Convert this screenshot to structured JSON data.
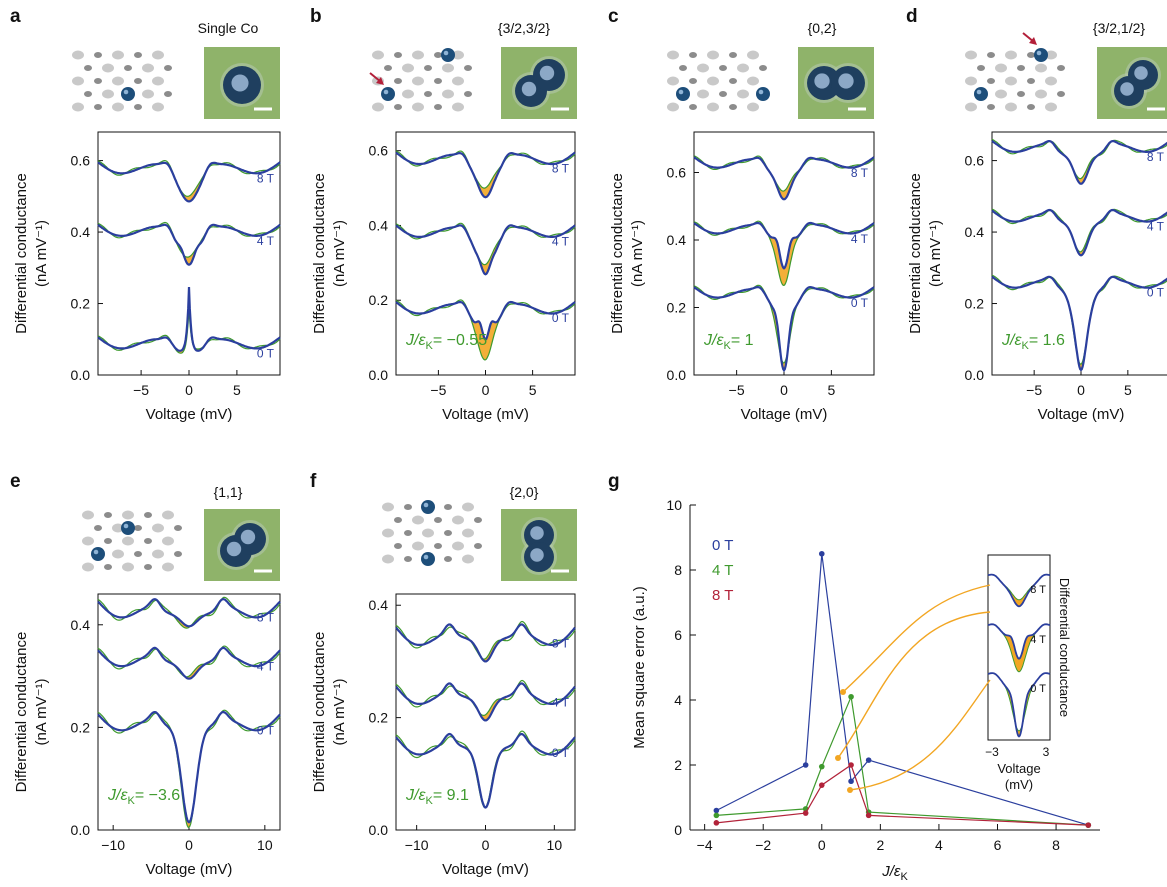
{
  "colors": {
    "data": "#2b3f9e",
    "fit": "#3f9a2e",
    "fill": "#f2a623",
    "red": "#b2233a",
    "bg_afm": "#8fb36a",
    "atom": "#1d4e7a",
    "arrow": "#b3203a"
  },
  "common": {
    "ylabel_line1": "Differential conductance",
    "ylabel_line2": "(nA mV⁻¹)",
    "xlabel": "Voltage (mV)"
  },
  "panels": [
    {
      "letter": "a",
      "title": "Single Co",
      "ratio": "",
      "fields": [
        "8 T",
        "4 T",
        "0 T"
      ],
      "xticks": [
        "−5",
        "0",
        "5"
      ],
      "yticks": [
        "0.0",
        "0.2",
        "0.4",
        "0.6"
      ]
    },
    {
      "letter": "b",
      "title": "{3/2,3/2}",
      "ratio": "= −0.55",
      "fields": [
        "8 T",
        "4 T",
        "0 T"
      ],
      "xticks": [
        "−5",
        "0",
        "5"
      ],
      "yticks": [
        "0.0",
        "0.2",
        "0.4",
        "0.6"
      ]
    },
    {
      "letter": "c",
      "title": "{0,2}",
      "ratio": "= 1",
      "fields": [
        "8 T",
        "4 T",
        "0 T"
      ],
      "xticks": [
        "−5",
        "0",
        "5"
      ],
      "yticks": [
        "0.0",
        "0.2",
        "0.4",
        "0.6"
      ]
    },
    {
      "letter": "d",
      "title": "{3/2,1/2}",
      "ratio": "= 1.6",
      "fields": [
        "8 T",
        "4 T",
        "0 T"
      ],
      "xticks": [
        "−5",
        "0",
        "5"
      ],
      "yticks": [
        "0.0",
        "0.2",
        "0.4",
        "0.6"
      ]
    },
    {
      "letter": "e",
      "title": "{1,1}",
      "ratio": "= −3.6",
      "fields": [
        "8 T",
        "4 T",
        "0 T"
      ],
      "xticks": [
        "−10",
        "0",
        "10"
      ],
      "yticks": [
        "0.0",
        "0.2",
        "0.4"
      ]
    },
    {
      "letter": "f",
      "title": "{2,0}",
      "ratio": "= 9.1",
      "fields": [
        "8 T",
        "4 T",
        "0 T"
      ],
      "xticks": [
        "−10",
        "0",
        "10"
      ],
      "yticks": [
        "0.0",
        "0.2",
        "0.4"
      ]
    }
  ],
  "ratio_symbol": "J/ε",
  "ratio_sub": "K",
  "chart_data": [
    {
      "type": "line",
      "panel": "a",
      "xlabel": "Voltage (mV)",
      "ylabel": "Differential conductance (nA mV⁻¹)",
      "xlim": [
        -9.5,
        9.5
      ],
      "ylim": [
        0,
        0.68
      ],
      "series": [
        {
          "name": "0 T",
          "baseline": 0.095,
          "peak": 0.27
        },
        {
          "name": "4 T",
          "baseline": 0.405
        },
        {
          "name": "8 T",
          "baseline": 0.58
        }
      ]
    },
    {
      "type": "line",
      "panel": "b",
      "xlabel": "Voltage (mV)",
      "ylabel": "Differential conductance (nA mV⁻¹)",
      "xlim": [
        -9.5,
        9.5
      ],
      "ylim": [
        0,
        0.65
      ],
      "series": [
        {
          "name": "0 T",
          "baseline": 0.18
        },
        {
          "name": "4 T",
          "baseline": 0.38
        },
        {
          "name": "8 T",
          "baseline": 0.58
        }
      ]
    },
    {
      "type": "line",
      "panel": "c",
      "xlabel": "Voltage (mV)",
      "ylabel": "Differential conductance (nA mV⁻¹)",
      "xlim": [
        -9.5,
        9.5
      ],
      "ylim": [
        0,
        0.72
      ],
      "series": [
        {
          "name": "0 T",
          "baseline": 0.24
        },
        {
          "name": "4 T",
          "baseline": 0.43
        },
        {
          "name": "8 T",
          "baseline": 0.63
        }
      ]
    },
    {
      "type": "line",
      "panel": "d",
      "xlabel": "Voltage (mV)",
      "ylabel": "Differential conductance (nA mV⁻¹)",
      "xlim": [
        -9.5,
        9.5
      ],
      "ylim": [
        0,
        0.68
      ],
      "series": [
        {
          "name": "0 T",
          "baseline": 0.26
        },
        {
          "name": "4 T",
          "baseline": 0.44
        },
        {
          "name": "8 T",
          "baseline": 0.63
        }
      ]
    },
    {
      "type": "line",
      "panel": "e",
      "xlabel": "Voltage (mV)",
      "ylabel": "Differential conductance (nA mV⁻¹)",
      "xlim": [
        -12,
        12
      ],
      "ylim": [
        0,
        0.46
      ],
      "series": [
        {
          "name": "0 T",
          "baseline": 0.21
        },
        {
          "name": "4 T",
          "baseline": 0.335
        },
        {
          "name": "8 T",
          "baseline": 0.43
        }
      ]
    },
    {
      "type": "line",
      "panel": "f",
      "xlabel": "Voltage (mV)",
      "ylabel": "Differential conductance (nA mV⁻¹)",
      "xlim": [
        -13,
        13
      ],
      "ylim": [
        0,
        0.42
      ],
      "series": [
        {
          "name": "0 T",
          "baseline": 0.15
        },
        {
          "name": "4 T",
          "baseline": 0.245
        },
        {
          "name": "8 T",
          "baseline": 0.345
        }
      ]
    },
    {
      "type": "line",
      "panel": "g",
      "xlabel": "J/εK",
      "ylabel": "Mean square error  (a.u.)",
      "xlim": [
        -4.5,
        9.5
      ],
      "ylim": [
        0,
        10
      ],
      "xticks": [
        -4,
        -2,
        0,
        2,
        4,
        6,
        8
      ],
      "yticks": [
        0,
        2,
        4,
        6,
        8,
        10
      ],
      "series": [
        {
          "name": "0 T",
          "color": "#2b3f9e",
          "x": [
            -3.6,
            -0.55,
            0,
            1,
            1.6,
            9.1
          ],
          "y": [
            0.6,
            2.0,
            8.5,
            1.5,
            2.15,
            0.15
          ]
        },
        {
          "name": "4 T",
          "color": "#3f9a2e",
          "x": [
            -3.6,
            -0.55,
            0,
            1,
            1.6,
            9.1
          ],
          "y": [
            0.45,
            0.65,
            1.95,
            4.1,
            0.55,
            0.15
          ]
        },
        {
          "name": "8 T",
          "color": "#b2233a",
          "x": [
            -3.6,
            -0.55,
            0,
            1,
            1.6,
            9.1
          ],
          "y": [
            0.22,
            0.52,
            1.38,
            2.0,
            0.45,
            0.15
          ]
        }
      ],
      "legend_position": "top-left",
      "inset": {
        "xlabel_line1": "Voltage",
        "xlabel_line2": "(mV)",
        "ylabel": "Differential conductance",
        "xticks": [
          "−3",
          "3"
        ],
        "fields": [
          "8 T",
          "4 T",
          "0 T"
        ]
      }
    }
  ],
  "panel_g": {
    "letter": "g",
    "ylabel": "Mean square error  (a.u.)",
    "xlabel_main": "J/ε",
    "xlabel_sub": "K",
    "xticks": [
      "−4",
      "−2",
      "0",
      "2",
      "4",
      "6",
      "8"
    ],
    "yticks": [
      "0",
      "2",
      "4",
      "6",
      "8",
      "10"
    ],
    "legend": [
      "0 T",
      "4 T",
      "8 T"
    ],
    "inset_ylabel": "Differential conductance",
    "inset_xlabel_1": "Voltage",
    "inset_xlabel_2": "(mV)",
    "inset_xticks": [
      "−3",
      "3"
    ],
    "inset_fields": [
      "8 T",
      "4 T",
      "0 T"
    ]
  }
}
